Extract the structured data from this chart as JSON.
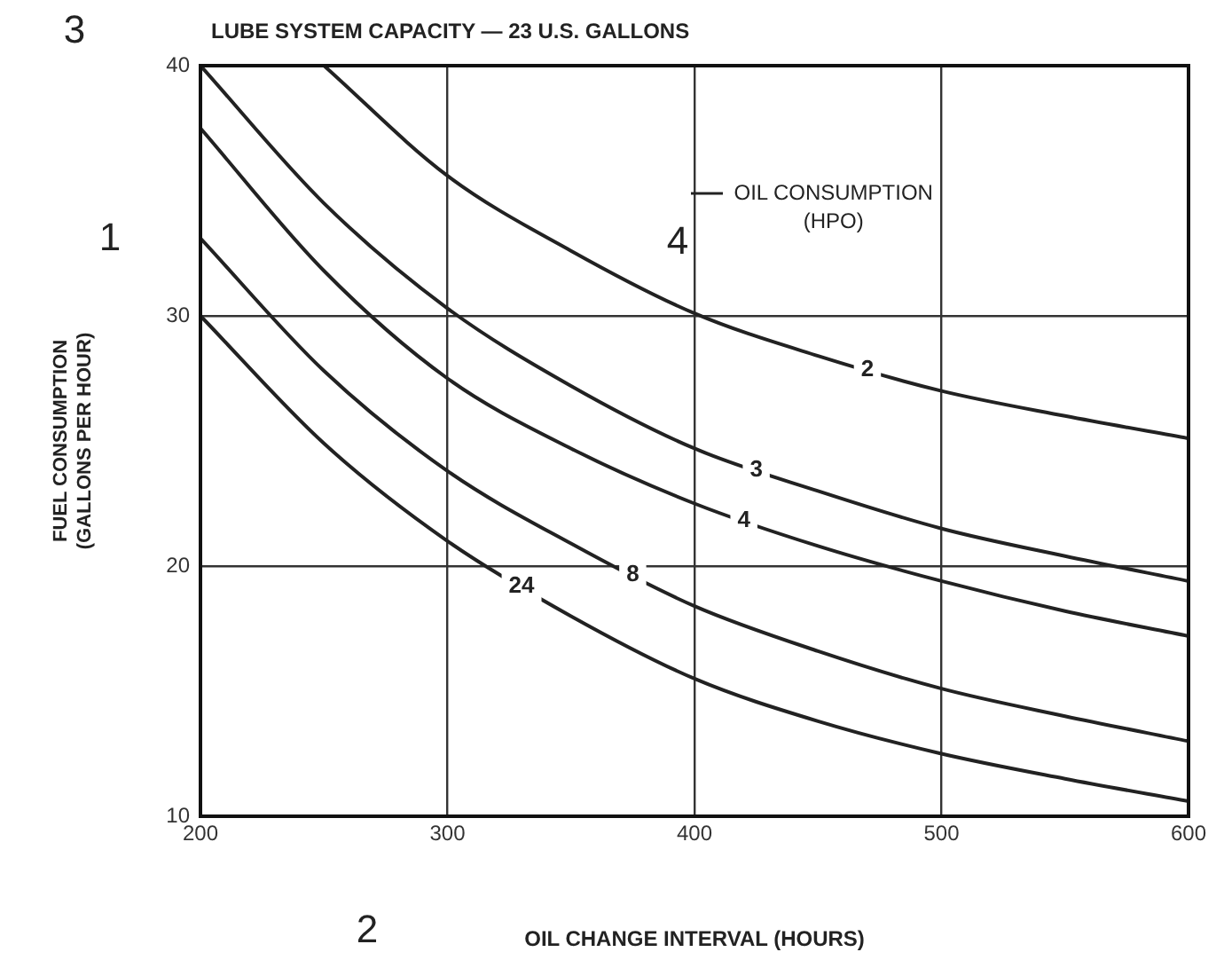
{
  "chart_data": {
    "type": "line",
    "title": "LUBE SYSTEM CAPACITY — 23 U.S. GALLONS",
    "xlabel": "OIL CHANGE INTERVAL (HOURS)",
    "ylabel": "FUEL CONSUMPTION\n(GALLONS PER HOUR)",
    "legend_title": "OIL CONSUMPTION\n(HPO)",
    "annotations": [
      "3",
      "1",
      "4",
      "2"
    ],
    "xlim": [
      200,
      600
    ],
    "xticks": [
      200,
      300,
      400,
      500,
      600
    ],
    "ylim": [
      10,
      40
    ],
    "yticks": [
      10,
      20,
      30,
      40
    ],
    "grid": true,
    "marker": "none",
    "line_style": "solid",
    "series": [
      {
        "name": "2",
        "color": "#222222",
        "x": [
          250,
          300,
          350,
          400,
          450,
          500,
          550,
          600
        ],
        "values": [
          40,
          35.6,
          32.6,
          30.1,
          28.4,
          27.0,
          26.0,
          25.1
        ]
      },
      {
        "name": "3",
        "color": "#222222",
        "x": [
          200,
          250,
          300,
          350,
          400,
          450,
          500,
          550,
          600
        ],
        "values": [
          40,
          34.5,
          30.3,
          27.2,
          24.7,
          23.0,
          21.5,
          20.4,
          19.4
        ]
      },
      {
        "name": "4",
        "color": "#222222",
        "x": [
          200,
          250,
          300,
          350,
          400,
          450,
          500,
          550,
          600
        ],
        "values": [
          37.5,
          31.8,
          27.5,
          24.7,
          22.5,
          20.8,
          19.4,
          18.2,
          17.2
        ]
      },
      {
        "name": "8",
        "color": "#222222",
        "x": [
          200,
          250,
          300,
          350,
          400,
          450,
          500,
          550,
          600
        ],
        "values": [
          33.1,
          27.8,
          23.8,
          20.9,
          18.4,
          16.6,
          15.1,
          14.0,
          13.0
        ]
      },
      {
        "name": "24",
        "color": "#222222",
        "x": [
          200,
          250,
          300,
          350,
          400,
          450,
          500,
          550,
          600
        ],
        "values": [
          30.0,
          24.9,
          21.0,
          18.0,
          15.5,
          13.8,
          12.5,
          11.5,
          10.6
        ]
      }
    ]
  }
}
